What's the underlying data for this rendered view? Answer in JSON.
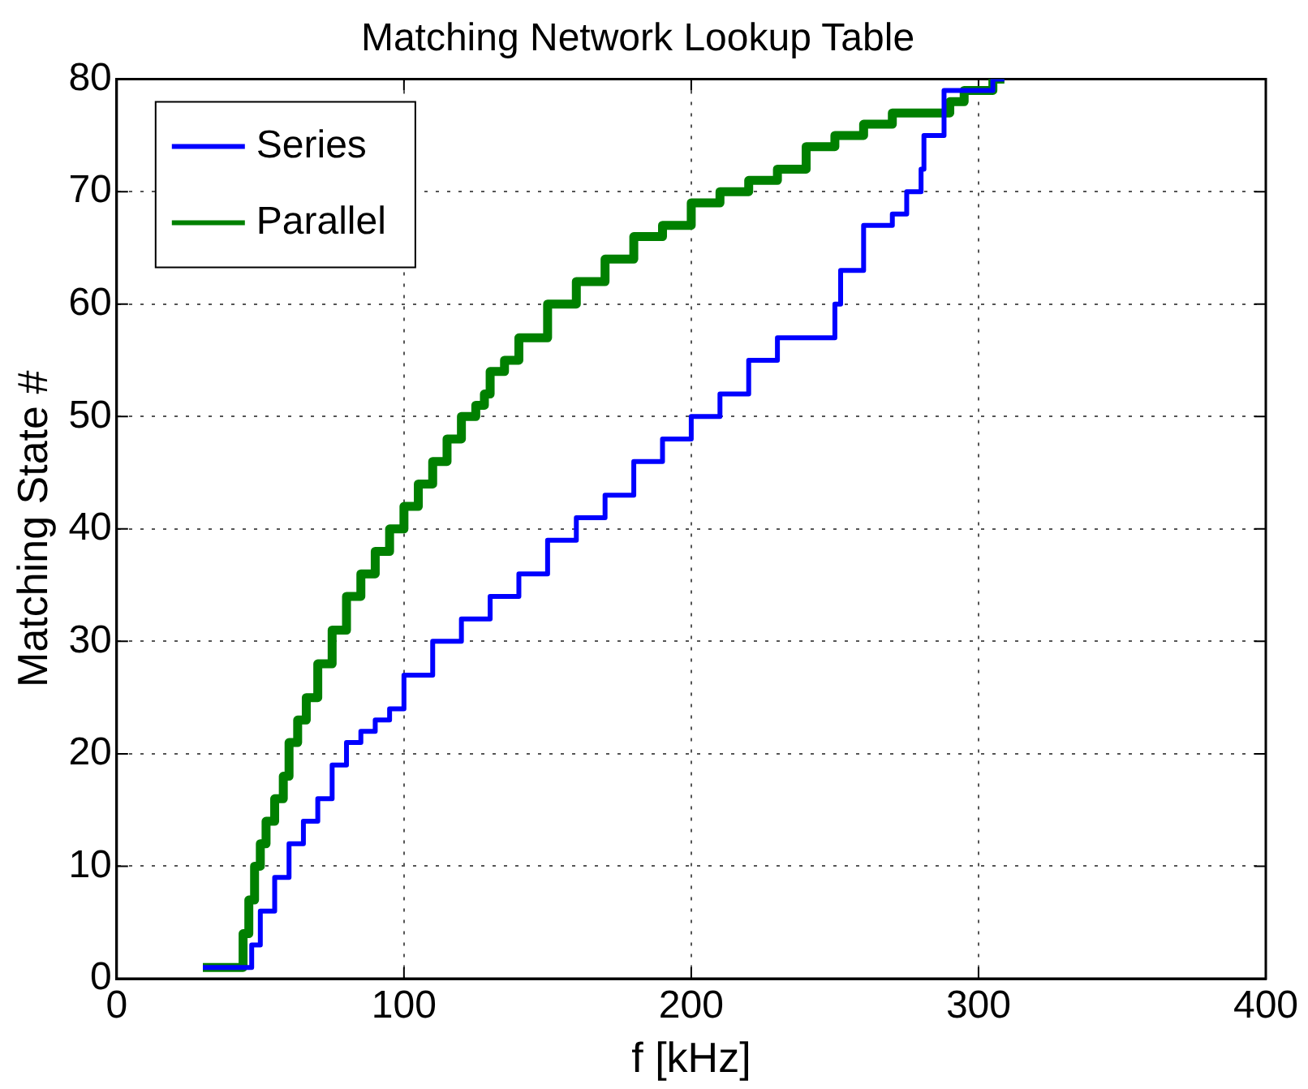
{
  "chart_data": {
    "type": "step",
    "title": "Matching Network Lookup Table",
    "xlabel": "f [kHz]",
    "ylabel": "Matching State #",
    "xlim": [
      0,
      400
    ],
    "xticks": [
      0,
      100,
      200,
      300,
      400
    ],
    "ylim": [
      0,
      80
    ],
    "yticks": [
      0,
      10,
      20,
      30,
      40,
      50,
      60,
      70,
      80
    ],
    "grid": true,
    "legend": "top left",
    "line_style": "solid",
    "marker": "none",
    "series": [
      {
        "name": "Series",
        "color": "#0000ff",
        "x": [
          30,
          47,
          50,
          55,
          60,
          65,
          70,
          75,
          80,
          85,
          90,
          95,
          100,
          110,
          120,
          130,
          140,
          150,
          160,
          170,
          180,
          190,
          200,
          210,
          220,
          230,
          240,
          250,
          252,
          260,
          270,
          275,
          280,
          281,
          283,
          288,
          295,
          305,
          309
        ],
        "values": [
          1,
          1,
          3,
          6,
          9,
          12,
          14,
          16,
          19,
          21,
          22,
          23,
          24,
          27,
          30,
          32,
          34,
          36,
          39,
          41,
          43,
          46,
          48,
          50,
          52,
          55,
          57,
          57,
          60,
          63,
          67,
          68,
          70,
          72,
          75,
          75,
          79,
          79,
          80
        ]
      },
      {
        "name": "Parallel",
        "color": "#008000",
        "x": [
          30,
          44,
          46,
          48,
          50,
          52,
          55,
          58,
          60,
          63,
          66,
          70,
          75,
          80,
          85,
          90,
          95,
          100,
          105,
          110,
          115,
          120,
          125,
          128,
          130,
          135,
          140,
          150,
          160,
          170,
          180,
          190,
          200,
          210,
          220,
          230,
          240,
          250,
          260,
          270,
          280,
          290,
          295,
          305,
          309
        ],
        "values": [
          1,
          1,
          4,
          7,
          10,
          12,
          14,
          16,
          18,
          21,
          23,
          25,
          28,
          31,
          34,
          36,
          38,
          40,
          42,
          44,
          46,
          48,
          50,
          51,
          52,
          54,
          55,
          57,
          60,
          62,
          64,
          66,
          67,
          69,
          70,
          71,
          72,
          74,
          75,
          76,
          77,
          77,
          78,
          79,
          80
        ]
      }
    ]
  }
}
